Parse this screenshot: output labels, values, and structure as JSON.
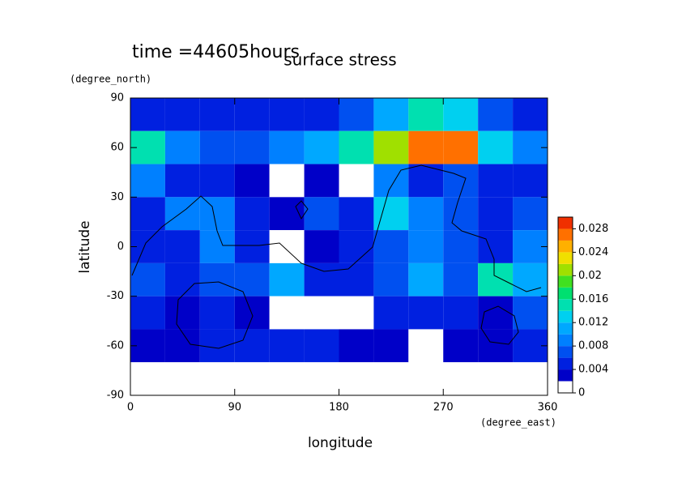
{
  "chart_data": {
    "type": "contour",
    "title": "surface stress",
    "subtitle": "time =44605hours",
    "x_label": "longitude",
    "x_units": "(degree_east)",
    "y_label": "latitude",
    "y_units": "(degree_north)",
    "x": [
      15,
      45,
      75,
      105,
      135,
      165,
      195,
      225,
      255,
      285,
      315,
      345
    ],
    "y": [
      80,
      60,
      40,
      20,
      0,
      -20,
      -40,
      -60,
      -80
    ],
    "z": [
      [
        0.005,
        0.004,
        0.004,
        0.004,
        0.004,
        0.005,
        0.006,
        0.01,
        0.014,
        0.012,
        0.006,
        0.005
      ],
      [
        0.014,
        0.008,
        0.006,
        0.006,
        0.008,
        0.01,
        0.014,
        0.02,
        0.026,
        0.026,
        0.012,
        0.008
      ],
      [
        0.008,
        0.004,
        0.004,
        0.002,
        0.001,
        0.003,
        0.001,
        0.008,
        0.004,
        0.006,
        0.004,
        0.004
      ],
      [
        0.004,
        0.008,
        0.008,
        0.005,
        0.003,
        0.006,
        0.004,
        0.012,
        0.008,
        0.006,
        0.004,
        0.006
      ],
      [
        0.004,
        0.005,
        0.008,
        0.004,
        0.001,
        0.002,
        0.004,
        0.006,
        0.008,
        0.006,
        0.004,
        0.008
      ],
      [
        0.006,
        0.004,
        0.006,
        0.006,
        0.01,
        0.004,
        0.004,
        0.006,
        0.01,
        0.006,
        0.014,
        0.01
      ],
      [
        0.004,
        0.002,
        0.004,
        0.003,
        0.001,
        0.001,
        0.001,
        0.004,
        0.004,
        0.004,
        0.002,
        0.006
      ],
      [
        0.003,
        0.003,
        0.004,
        0.004,
        0.004,
        0.004,
        0.002,
        0.002,
        0.001,
        0.003,
        0.003,
        0.005
      ],
      [
        0,
        0,
        0,
        0,
        0,
        0,
        0,
        0,
        0,
        0,
        0,
        0
      ]
    ],
    "xlim": [
      0,
      360
    ],
    "xticks": [
      0,
      90,
      180,
      270,
      360
    ],
    "ylim": [
      -90,
      90
    ],
    "yticks": [
      -90,
      -60,
      -30,
      0,
      30,
      60,
      90
    ],
    "levels": [
      0,
      0.002,
      0.004,
      0.006,
      0.008,
      0.01,
      0.012,
      0.014,
      0.016,
      0.018,
      0.02,
      0.022,
      0.024,
      0.026,
      0.028,
      0.03
    ],
    "colors": [
      "#ffffff",
      "#0000c8",
      "#0020e0",
      "#0050f0",
      "#0080ff",
      "#00a8ff",
      "#00d0f0",
      "#00e0b0",
      "#00e070",
      "#40e020",
      "#a0e000",
      "#f0e000",
      "#ffb000",
      "#ff7000",
      "#f03000"
    ],
    "colorbar_ticks": [
      0,
      0.004,
      0.008,
      0.012,
      0.016,
      0.02,
      0.024,
      0.028
    ]
  }
}
